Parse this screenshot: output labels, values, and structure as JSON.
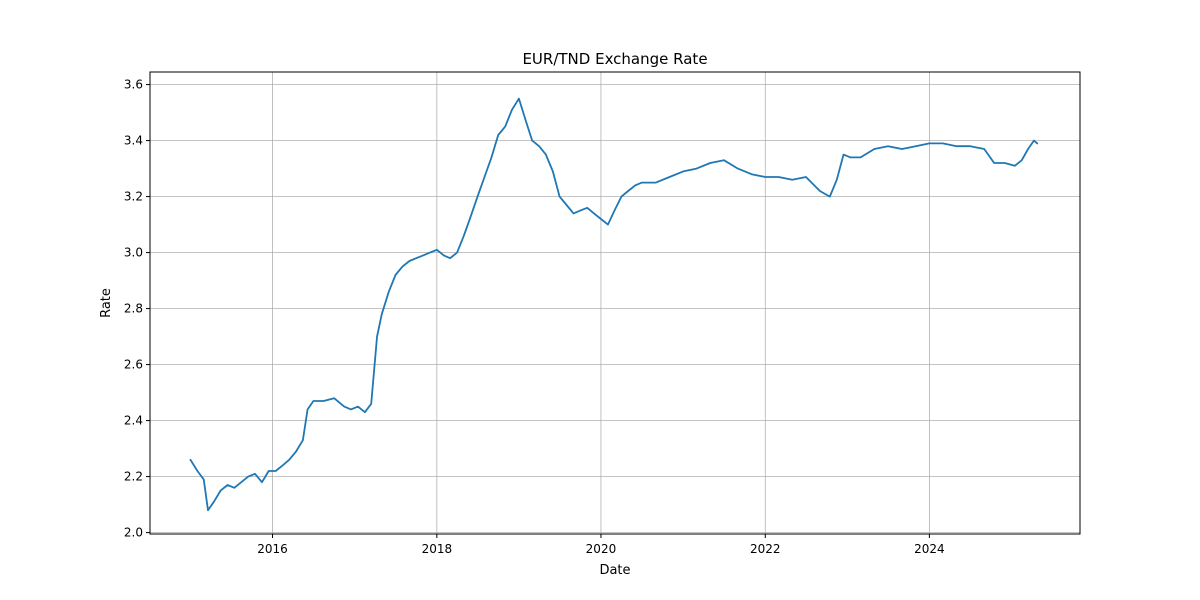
{
  "chart_data": {
    "type": "line",
    "title": "EUR/TND Exchange Rate",
    "xlabel": "Date",
    "ylabel": "Rate",
    "x_ticks": [
      "2016",
      "2018",
      "2020",
      "2022",
      "2024"
    ],
    "y_ticks": [
      "2.0",
      "2.2",
      "2.4",
      "2.6",
      "2.8",
      "3.0",
      "3.2",
      "3.4",
      "3.6"
    ],
    "xlim": [
      "2014-07-05",
      "2025-11-01"
    ],
    "ylim": [
      1.995,
      3.645
    ],
    "grid": true,
    "line_color": "#1f77b4",
    "series": [
      {
        "name": "",
        "x": [
          "2015-01-01",
          "2015-02-01",
          "2015-03-01",
          "2015-03-20",
          "2015-04-15",
          "2015-05-15",
          "2015-06-15",
          "2015-07-15",
          "2015-08-15",
          "2015-09-15",
          "2015-10-15",
          "2015-11-15",
          "2015-12-15",
          "2016-01-15",
          "2016-02-15",
          "2016-03-15",
          "2016-04-15",
          "2016-05-15",
          "2016-06-05",
          "2016-07-01",
          "2016-08-15",
          "2016-10-01",
          "2016-11-15",
          "2016-12-15",
          "2017-01-15",
          "2017-02-15",
          "2017-03-15",
          "2017-04-10",
          "2017-05-01",
          "2017-06-01",
          "2017-07-01",
          "2017-08-01",
          "2017-09-01",
          "2017-10-01",
          "2017-11-01",
          "2017-12-01",
          "2018-01-01",
          "2018-02-01",
          "2018-03-01",
          "2018-04-01",
          "2018-05-01",
          "2018-06-01",
          "2018-07-01",
          "2018-08-01",
          "2018-09-01",
          "2018-10-01",
          "2018-11-01",
          "2018-12-01",
          "2019-01-01",
          "2019-02-01",
          "2019-03-01",
          "2019-04-01",
          "2019-05-01",
          "2019-06-01",
          "2019-07-01",
          "2019-08-01",
          "2019-09-01",
          "2019-10-01",
          "2019-11-01",
          "2019-12-01",
          "2020-01-01",
          "2020-02-01",
          "2020-03-01",
          "2020-04-01",
          "2020-05-01",
          "2020-06-01",
          "2020-07-01",
          "2020-09-01",
          "2020-11-01",
          "2021-01-01",
          "2021-03-01",
          "2021-05-01",
          "2021-07-01",
          "2021-09-01",
          "2021-11-01",
          "2022-01-01",
          "2022-03-01",
          "2022-05-01",
          "2022-07-01",
          "2022-09-01",
          "2022-10-15",
          "2022-11-15",
          "2022-12-15",
          "2023-01-15",
          "2023-03-01",
          "2023-05-01",
          "2023-07-01",
          "2023-09-01",
          "2023-11-01",
          "2024-01-01",
          "2024-03-01",
          "2024-05-01",
          "2024-07-01",
          "2024-09-01",
          "2024-10-15",
          "2024-12-01",
          "2025-01-15",
          "2025-02-15",
          "2025-03-15",
          "2025-04-10",
          "2025-04-25"
        ],
        "values": [
          2.26,
          2.22,
          2.19,
          2.08,
          2.11,
          2.15,
          2.17,
          2.16,
          2.18,
          2.2,
          2.21,
          2.18,
          2.22,
          2.22,
          2.24,
          2.26,
          2.29,
          2.33,
          2.44,
          2.47,
          2.47,
          2.48,
          2.45,
          2.44,
          2.45,
          2.43,
          2.46,
          2.7,
          2.78,
          2.86,
          2.92,
          2.95,
          2.97,
          2.98,
          2.99,
          3.0,
          3.01,
          2.99,
          2.98,
          3.0,
          3.06,
          3.13,
          3.2,
          3.27,
          3.34,
          3.42,
          3.45,
          3.51,
          3.55,
          3.47,
          3.4,
          3.38,
          3.35,
          3.29,
          3.2,
          3.17,
          3.14,
          3.15,
          3.16,
          3.14,
          3.12,
          3.1,
          3.15,
          3.2,
          3.22,
          3.24,
          3.25,
          3.25,
          3.27,
          3.29,
          3.3,
          3.32,
          3.33,
          3.3,
          3.28,
          3.27,
          3.27,
          3.26,
          3.27,
          3.22,
          3.2,
          3.26,
          3.35,
          3.34,
          3.34,
          3.37,
          3.38,
          3.37,
          3.38,
          3.39,
          3.39,
          3.38,
          3.38,
          3.37,
          3.32,
          3.32,
          3.31,
          3.33,
          3.37,
          3.4,
          3.39
        ]
      }
    ]
  }
}
